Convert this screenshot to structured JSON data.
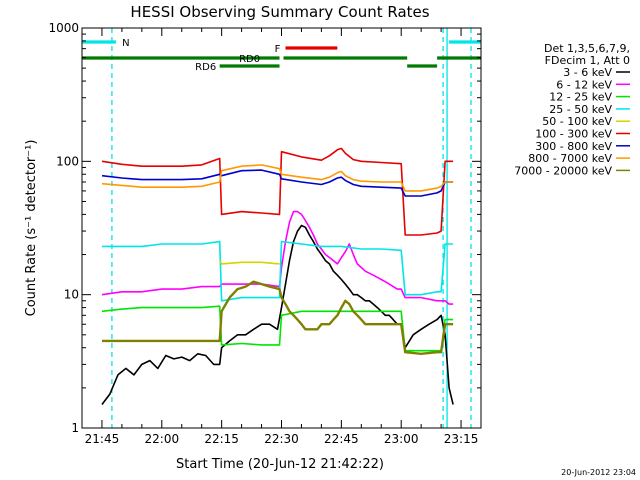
{
  "chart_data": {
    "type": "line",
    "title": "HESSI Observing Summary Count Rates",
    "xlabel": "Start Time (20-Jun-12 21:42:22)",
    "ylabel": "Count Rate (s⁻¹ detector⁻¹)",
    "y_scale": "log",
    "ylim": [
      1,
      1000
    ],
    "xlim_minutes_after_2130": [
      10,
      110
    ],
    "x_ticks": [
      {
        "label": "21:45",
        "t": 15
      },
      {
        "label": "22:00",
        "t": 30
      },
      {
        "label": "22:15",
        "t": 45
      },
      {
        "label": "22:30",
        "t": 60
      },
      {
        "label": "22:45",
        "t": 75
      },
      {
        "label": "23:00",
        "t": 90
      },
      {
        "label": "23:15",
        "t": 105
      }
    ],
    "y_ticks": [
      {
        "label": "1",
        "v": 1
      },
      {
        "label": "10",
        "v": 10
      },
      {
        "label": "100",
        "v": 100
      },
      {
        "label": "1000",
        "v": 1000
      }
    ],
    "legend_header": [
      "Det 1,3,5,6,7,9,",
      "FDecim 1, Att 0"
    ],
    "legend_placement": "right",
    "timestamp": "20-Jun-2012 23:04",
    "background": "#ffffff",
    "flags": [
      {
        "label": "N",
        "color": "#00e5e5",
        "segments": [
          [
            10,
            18.5
          ],
          [
            102,
            110
          ]
        ]
      },
      {
        "label": "F",
        "color": "#e60000",
        "segments": [
          [
            61,
            74
          ]
        ]
      },
      {
        "label": "RD0",
        "color": "#007a00",
        "segments": [
          [
            10,
            59.5
          ],
          [
            60.5,
            91.5
          ],
          [
            99,
            110
          ]
        ]
      },
      {
        "label": "RD6",
        "color": "#007a00",
        "segments": [
          [
            44.5,
            59.5
          ],
          [
            91.5,
            99
          ]
        ]
      }
    ],
    "eclipse_lines": [
      {
        "t": 17.5,
        "style": "dashed",
        "color": "#00e5e5"
      },
      {
        "t": 100.5,
        "style": "dashed",
        "color": "#00e5e5"
      },
      {
        "t": 101.5,
        "style": "solid",
        "color": "#00e5e5"
      },
      {
        "t": 107.5,
        "style": "dashed",
        "color": "#00e5e5"
      }
    ],
    "series": [
      {
        "name": "3 - 6 keV",
        "color": "#000000",
        "x": [
          15,
          17,
          19,
          21,
          23,
          25,
          27,
          29,
          31,
          33,
          35,
          37,
          39,
          41,
          43,
          44.5,
          45,
          47,
          49,
          51,
          53,
          55,
          57,
          59,
          60,
          61,
          62,
          63,
          64,
          65,
          66,
          67,
          68,
          69,
          70,
          71,
          72,
          73,
          74,
          75,
          76,
          77,
          78,
          79,
          80,
          81,
          82,
          83,
          84,
          85,
          86,
          87,
          88,
          89,
          90,
          91,
          93,
          95,
          97,
          99,
          100,
          101,
          102,
          103
        ],
        "y": [
          1.5,
          1.8,
          2.5,
          2.8,
          2.5,
          3,
          3.2,
          2.8,
          3.5,
          3.3,
          3.4,
          3.2,
          3.6,
          3.5,
          3,
          3,
          4,
          4.5,
          5,
          5,
          5.5,
          6,
          6,
          5.5,
          8,
          12,
          18,
          25,
          30,
          33,
          32,
          28,
          25,
          22,
          20,
          18,
          17,
          15,
          14,
          13,
          12,
          11,
          10,
          10,
          9.5,
          9,
          9,
          8.5,
          8,
          7.5,
          7,
          7,
          6.5,
          6,
          6,
          4,
          5,
          5.5,
          6,
          6.5,
          7,
          5,
          2,
          1.5
        ]
      },
      {
        "name": "6 - 12 keV",
        "color": "#ff00ff",
        "x": [
          15,
          20,
          25,
          30,
          35,
          40,
          44.5,
          45,
          50,
          55,
          59.5,
          60,
          61,
          62,
          63,
          64,
          65,
          66,
          67,
          68,
          69,
          70,
          71,
          72,
          73,
          74,
          75,
          76,
          77,
          78,
          79,
          80,
          81,
          82,
          83,
          84,
          85,
          86,
          87,
          88,
          89,
          90,
          91,
          95,
          99,
          100,
          101,
          102,
          103
        ],
        "y": [
          10,
          10.5,
          10.5,
          11,
          11,
          11.5,
          11.5,
          12,
          12,
          12,
          11.5,
          16,
          25,
          35,
          42,
          42,
          40,
          36,
          32,
          28,
          24,
          22,
          20,
          19,
          18,
          17,
          19,
          21,
          24,
          20,
          17,
          16,
          15,
          14.5,
          14,
          13.5,
          13,
          12.5,
          12,
          11.5,
          11,
          11,
          9.5,
          9.5,
          9,
          9,
          9,
          8.5,
          8.5
        ]
      },
      {
        "name": "12 - 25 keV",
        "color": "#00e600",
        "x": [
          15,
          20,
          25,
          30,
          35,
          40,
          44.5,
          45,
          50,
          55,
          59.5,
          60,
          65,
          70,
          75,
          80,
          85,
          90,
          91,
          95,
          99,
          100,
          101,
          102,
          103
        ],
        "y": [
          7.5,
          7.8,
          8,
          8,
          8,
          8,
          8.2,
          4.2,
          4.3,
          4.2,
          4.2,
          7,
          7.5,
          7.5,
          7.5,
          7.5,
          7.5,
          7.5,
          3.8,
          3.8,
          3.8,
          3.8,
          6.5,
          6.5,
          6.5
        ]
      },
      {
        "name": "25 - 50 keV",
        "color": "#00e5e5",
        "x": [
          15,
          20,
          25,
          30,
          35,
          40,
          44.5,
          45,
          50,
          55,
          59.5,
          60,
          65,
          70,
          75,
          80,
          85,
          90,
          91,
          95,
          99,
          100,
          101,
          102,
          103
        ],
        "y": [
          23,
          23,
          23,
          24,
          24,
          24,
          25,
          9,
          9.5,
          9.5,
          9.5,
          25,
          24,
          23,
          23,
          22,
          22,
          21.5,
          10,
          10,
          10.5,
          10.5,
          24,
          24,
          24
        ]
      },
      {
        "name": "50 - 100 keV",
        "color": "#d4d400",
        "x": [
          44.5,
          45,
          50,
          55,
          59.5
        ],
        "y": [
          18,
          17,
          17.5,
          17.5,
          17
        ]
      },
      {
        "name": "100 - 300 keV",
        "color": "#e60000",
        "x": [
          15,
          20,
          25,
          30,
          35,
          40,
          44.5,
          45,
          50,
          55,
          59.5,
          60,
          65,
          70,
          72,
          74,
          75,
          76,
          78,
          80,
          85,
          90,
          91,
          95,
          99,
          100,
          101,
          102,
          103
        ],
        "y": [
          100,
          95,
          92,
          92,
          92,
          94,
          105,
          40,
          42,
          41,
          40,
          118,
          108,
          102,
          110,
          122,
          125,
          115,
          103,
          100,
          98,
          96,
          28,
          28,
          29,
          30,
          100,
          100,
          100
        ]
      },
      {
        "name": "300 - 800 keV",
        "color": "#0000cc",
        "x": [
          15,
          20,
          25,
          30,
          35,
          40,
          44.5,
          45,
          50,
          55,
          59.5,
          60,
          65,
          70,
          72,
          74,
          75,
          76,
          78,
          80,
          85,
          90,
          91,
          95,
          99,
          100,
          101,
          102,
          103
        ],
        "y": [
          78,
          75,
          73,
          73,
          73,
          74,
          80,
          78,
          85,
          86,
          80,
          74,
          70,
          67,
          70,
          75,
          76,
          72,
          67,
          65,
          64,
          63,
          55,
          55,
          58,
          60,
          70,
          70,
          70
        ]
      },
      {
        "name": "800 - 7000 keV",
        "color": "#ff9900",
        "x": [
          15,
          20,
          25,
          30,
          35,
          40,
          44.5,
          45,
          50,
          55,
          59.5,
          60,
          65,
          70,
          72,
          74,
          75,
          76,
          78,
          80,
          85,
          90,
          91,
          95,
          99,
          100,
          101,
          102,
          103
        ],
        "y": [
          68,
          66,
          64,
          64,
          64,
          65,
          70,
          85,
          92,
          94,
          88,
          80,
          76,
          73,
          76,
          82,
          84,
          78,
          73,
          71,
          70,
          70,
          60,
          60,
          63,
          65,
          70,
          70,
          70
        ]
      },
      {
        "name": "7000 - 20000 keV",
        "color": "#808000",
        "x": [
          15,
          20,
          25,
          30,
          35,
          40,
          44.5,
          45,
          47,
          49,
          51,
          53,
          55,
          57,
          59.5,
          60,
          61,
          62,
          63,
          64,
          65,
          66,
          67,
          68,
          69,
          70,
          71,
          72,
          73,
          74,
          75,
          76,
          77,
          78,
          79,
          80,
          81,
          82,
          83,
          84,
          85,
          86,
          87,
          88,
          89,
          90,
          91,
          95,
          99,
          100,
          101,
          102,
          103
        ],
        "y": [
          4.5,
          4.5,
          4.5,
          4.5,
          4.5,
          4.5,
          4.5,
          7.5,
          9.5,
          11,
          11.5,
          12.5,
          12,
          11.5,
          11,
          9.5,
          8.5,
          7.5,
          7,
          6.5,
          6,
          5.5,
          5.5,
          5.5,
          5.5,
          6,
          6,
          6,
          6.5,
          7,
          8,
          9,
          8.5,
          7.5,
          7,
          6.5,
          6,
          6,
          6,
          6,
          6,
          6,
          6,
          6,
          6,
          6,
          3.7,
          3.6,
          3.7,
          3.7,
          6,
          6,
          6
        ]
      }
    ]
  }
}
